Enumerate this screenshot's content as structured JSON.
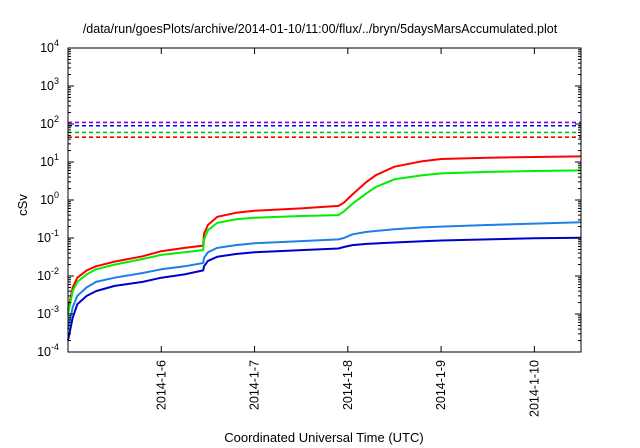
{
  "chart_data": {
    "type": "line",
    "title": "/data/run/goesPlots/archive/2014-01-10/11:00/flux/../bryn/5daysMarsAccumulated.plot",
    "xlabel": "Coordinated Universal Time (UTC)",
    "ylabel": "cSv",
    "yscale": "log",
    "ylim": [
      0.0001,
      10000
    ],
    "xlim": [
      "2014-01-05 00:00",
      "2014-01-10 12:00"
    ],
    "x_ticks": [
      "2014-1-6",
      "2014-1-7",
      "2014-1-8",
      "2014-1-9",
      "2014-1-10"
    ],
    "y_ticks": [
      {
        "base": "10",
        "exp": "-4",
        "value": 0.0001
      },
      {
        "base": "10",
        "exp": "-3",
        "value": 0.001
      },
      {
        "base": "10",
        "exp": "-2",
        "value": 0.01
      },
      {
        "base": "10",
        "exp": "-1",
        "value": 0.1
      },
      {
        "base": "10",
        "exp": "0",
        "value": 1
      },
      {
        "base": "10",
        "exp": "1",
        "value": 10
      },
      {
        "base": "10",
        "exp": "2",
        "value": 100
      },
      {
        "base": "10",
        "exp": "3",
        "value": 1000
      },
      {
        "base": "10",
        "exp": "4",
        "value": 10000
      }
    ],
    "grid": false,
    "legend": "none",
    "reference_lines": [
      {
        "value": 110,
        "color": "#9400d3",
        "style": "dashed"
      },
      {
        "value": 90,
        "color": "#0000ff",
        "style": "dashed"
      },
      {
        "value": 60,
        "color": "#00cc00",
        "style": "dashed"
      },
      {
        "value": 45,
        "color": "#ff0000",
        "style": "dashed"
      }
    ],
    "series": [
      {
        "color": "#ff0000",
        "points": [
          [
            "2014-01-05 00:00",
            0.0012
          ],
          [
            "2014-01-05 01:12",
            0.005
          ],
          [
            "2014-01-05 02:24",
            0.009
          ],
          [
            "2014-01-05 04:48",
            0.014
          ],
          [
            "2014-01-05 07:12",
            0.018
          ],
          [
            "2014-01-05 12:00",
            0.024
          ],
          [
            "2014-01-05 19:12",
            0.033
          ],
          [
            "2014-01-06 00:00",
            0.045
          ],
          [
            "2014-01-06 06:00",
            0.055
          ],
          [
            "2014-01-06 10:48",
            0.063
          ],
          [
            "2014-01-06 11:00",
            0.13
          ],
          [
            "2014-01-06 12:00",
            0.22
          ],
          [
            "2014-01-06 14:24",
            0.36
          ],
          [
            "2014-01-06 19:12",
            0.46
          ],
          [
            "2014-01-07 00:00",
            0.52
          ],
          [
            "2014-01-07 12:00",
            0.6
          ],
          [
            "2014-01-07 21:36",
            0.7
          ],
          [
            "2014-01-07 23:00",
            0.85
          ],
          [
            "2014-01-08 01:12",
            1.4
          ],
          [
            "2014-01-08 04:48",
            3
          ],
          [
            "2014-01-08 07:12",
            4.5
          ],
          [
            "2014-01-08 12:00",
            7.5
          ],
          [
            "2014-01-08 19:12",
            10.5
          ],
          [
            "2014-01-09 00:00",
            12
          ],
          [
            "2014-01-09 12:00",
            13
          ],
          [
            "2014-01-10 00:00",
            13.5
          ],
          [
            "2014-01-10 12:00",
            14
          ]
        ]
      },
      {
        "color": "#00ee00",
        "points": [
          [
            "2014-01-05 00:00",
            0.001
          ],
          [
            "2014-01-05 01:12",
            0.004
          ],
          [
            "2014-01-05 02:24",
            0.007
          ],
          [
            "2014-01-05 04:48",
            0.011
          ],
          [
            "2014-01-05 07:12",
            0.015
          ],
          [
            "2014-01-05 12:00",
            0.02
          ],
          [
            "2014-01-05 19:12",
            0.028
          ],
          [
            "2014-01-06 00:00",
            0.036
          ],
          [
            "2014-01-06 06:00",
            0.042
          ],
          [
            "2014-01-06 10:48",
            0.048
          ],
          [
            "2014-01-06 11:00",
            0.09
          ],
          [
            "2014-01-06 12:00",
            0.16
          ],
          [
            "2014-01-06 14:24",
            0.25
          ],
          [
            "2014-01-06 19:12",
            0.31
          ],
          [
            "2014-01-07 00:00",
            0.34
          ],
          [
            "2014-01-07 12:00",
            0.38
          ],
          [
            "2014-01-07 21:36",
            0.4
          ],
          [
            "2014-01-07 23:00",
            0.5
          ],
          [
            "2014-01-08 01:12",
            0.8
          ],
          [
            "2014-01-08 04:48",
            1.5
          ],
          [
            "2014-01-08 07:12",
            2.2
          ],
          [
            "2014-01-08 12:00",
            3.5
          ],
          [
            "2014-01-08 19:12",
            4.5
          ],
          [
            "2014-01-09 00:00",
            5
          ],
          [
            "2014-01-09 12:00",
            5.5
          ],
          [
            "2014-01-10 00:00",
            5.8
          ],
          [
            "2014-01-10 12:00",
            6
          ]
        ]
      },
      {
        "color": "#1e7fe6",
        "points": [
          [
            "2014-01-05 00:00",
            0.0004
          ],
          [
            "2014-01-05 01:12",
            0.0015
          ],
          [
            "2014-01-05 02:24",
            0.003
          ],
          [
            "2014-01-05 04:48",
            0.005
          ],
          [
            "2014-01-05 07:12",
            0.007
          ],
          [
            "2014-01-05 12:00",
            0.009
          ],
          [
            "2014-01-05 19:12",
            0.012
          ],
          [
            "2014-01-06 00:00",
            0.015
          ],
          [
            "2014-01-06 06:00",
            0.018
          ],
          [
            "2014-01-06 10:48",
            0.022
          ],
          [
            "2014-01-06 11:00",
            0.03
          ],
          [
            "2014-01-06 12:00",
            0.042
          ],
          [
            "2014-01-06 14:24",
            0.055
          ],
          [
            "2014-01-06 19:12",
            0.065
          ],
          [
            "2014-01-07 00:00",
            0.073
          ],
          [
            "2014-01-07 12:00",
            0.083
          ],
          [
            "2014-01-07 21:36",
            0.092
          ],
          [
            "2014-01-07 23:00",
            0.1
          ],
          [
            "2014-01-08 01:12",
            0.125
          ],
          [
            "2014-01-08 04:48",
            0.145
          ],
          [
            "2014-01-08 12:00",
            0.17
          ],
          [
            "2014-01-08 19:12",
            0.19
          ],
          [
            "2014-01-09 00:00",
            0.2
          ],
          [
            "2014-01-09 12:00",
            0.22
          ],
          [
            "2014-01-10 00:00",
            0.24
          ],
          [
            "2014-01-10 12:00",
            0.26
          ]
        ]
      },
      {
        "color": "#0000cc",
        "points": [
          [
            "2014-01-05 00:00",
            0.0002
          ],
          [
            "2014-01-05 01:12",
            0.0008
          ],
          [
            "2014-01-05 02:24",
            0.0018
          ],
          [
            "2014-01-05 04:48",
            0.003
          ],
          [
            "2014-01-05 07:12",
            0.004
          ],
          [
            "2014-01-05 12:00",
            0.0055
          ],
          [
            "2014-01-05 19:12",
            0.007
          ],
          [
            "2014-01-06 00:00",
            0.009
          ],
          [
            "2014-01-06 06:00",
            0.011
          ],
          [
            "2014-01-06 10:48",
            0.014
          ],
          [
            "2014-01-06 11:00",
            0.018
          ],
          [
            "2014-01-06 12:00",
            0.025
          ],
          [
            "2014-01-06 14:24",
            0.032
          ],
          [
            "2014-01-06 19:12",
            0.038
          ],
          [
            "2014-01-07 00:00",
            0.042
          ],
          [
            "2014-01-07 12:00",
            0.048
          ],
          [
            "2014-01-07 21:36",
            0.053
          ],
          [
            "2014-01-07 23:00",
            0.058
          ],
          [
            "2014-01-08 01:12",
            0.065
          ],
          [
            "2014-01-08 04:48",
            0.07
          ],
          [
            "2014-01-08 12:00",
            0.076
          ],
          [
            "2014-01-08 19:12",
            0.082
          ],
          [
            "2014-01-09 00:00",
            0.086
          ],
          [
            "2014-01-09 12:00",
            0.092
          ],
          [
            "2014-01-10 00:00",
            0.098
          ],
          [
            "2014-01-10 12:00",
            0.102
          ]
        ]
      }
    ]
  }
}
